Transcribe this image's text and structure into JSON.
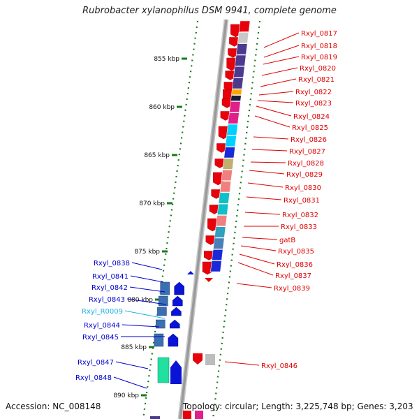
{
  "title": "Rubrobacter xylanophilus DSM 9941, complete genome",
  "footer": {
    "accession": "Accession: NC_008148",
    "topology": "Topology: circular; Length: 3,225,748 bp; Genes: 3,203"
  },
  "scale_labels": [
    "855 kbp",
    "860 kbp",
    "865 kbp",
    "870 kbp",
    "875 kbp",
    "880 kbp",
    "885 kbp",
    "890 kbp"
  ],
  "right_genes": [
    "Rxyl_0817",
    "Rxyl_0818",
    "Rxyl_0819",
    "Rxyl_0820",
    "Rxyl_0821",
    "Rxyl_0822",
    "Rxyl_0823",
    "Rxyl_0824",
    "Rxyl_0825",
    "Rxyl_0826",
    "Rxyl_0827",
    "Rxyl_0828",
    "Rxyl_0829",
    "Rxyl_0830",
    "Rxyl_0831",
    "Rxyl_0832",
    "Rxyl_0833",
    "gatB",
    "Rxyl_0835",
    "Rxyl_0836",
    "Rxyl_0837",
    "Rxyl_0839",
    "Rxyl_0846"
  ],
  "left_genes": [
    "Rxyl_0838",
    "Rxyl_0841",
    "Rxyl_0842",
    "Rxyl_0843",
    "Rxyl_R0009",
    "Rxyl_0844",
    "Rxyl_0845",
    "Rxyl_0847",
    "Rxyl_0848"
  ],
  "colors": {
    "forward_strand": "#e8000b",
    "reverse_strand": "#0a14d6",
    "rna_gene": "#19b4e6",
    "backbone": "#9a9a9a",
    "tick": "#1a7a1a"
  }
}
